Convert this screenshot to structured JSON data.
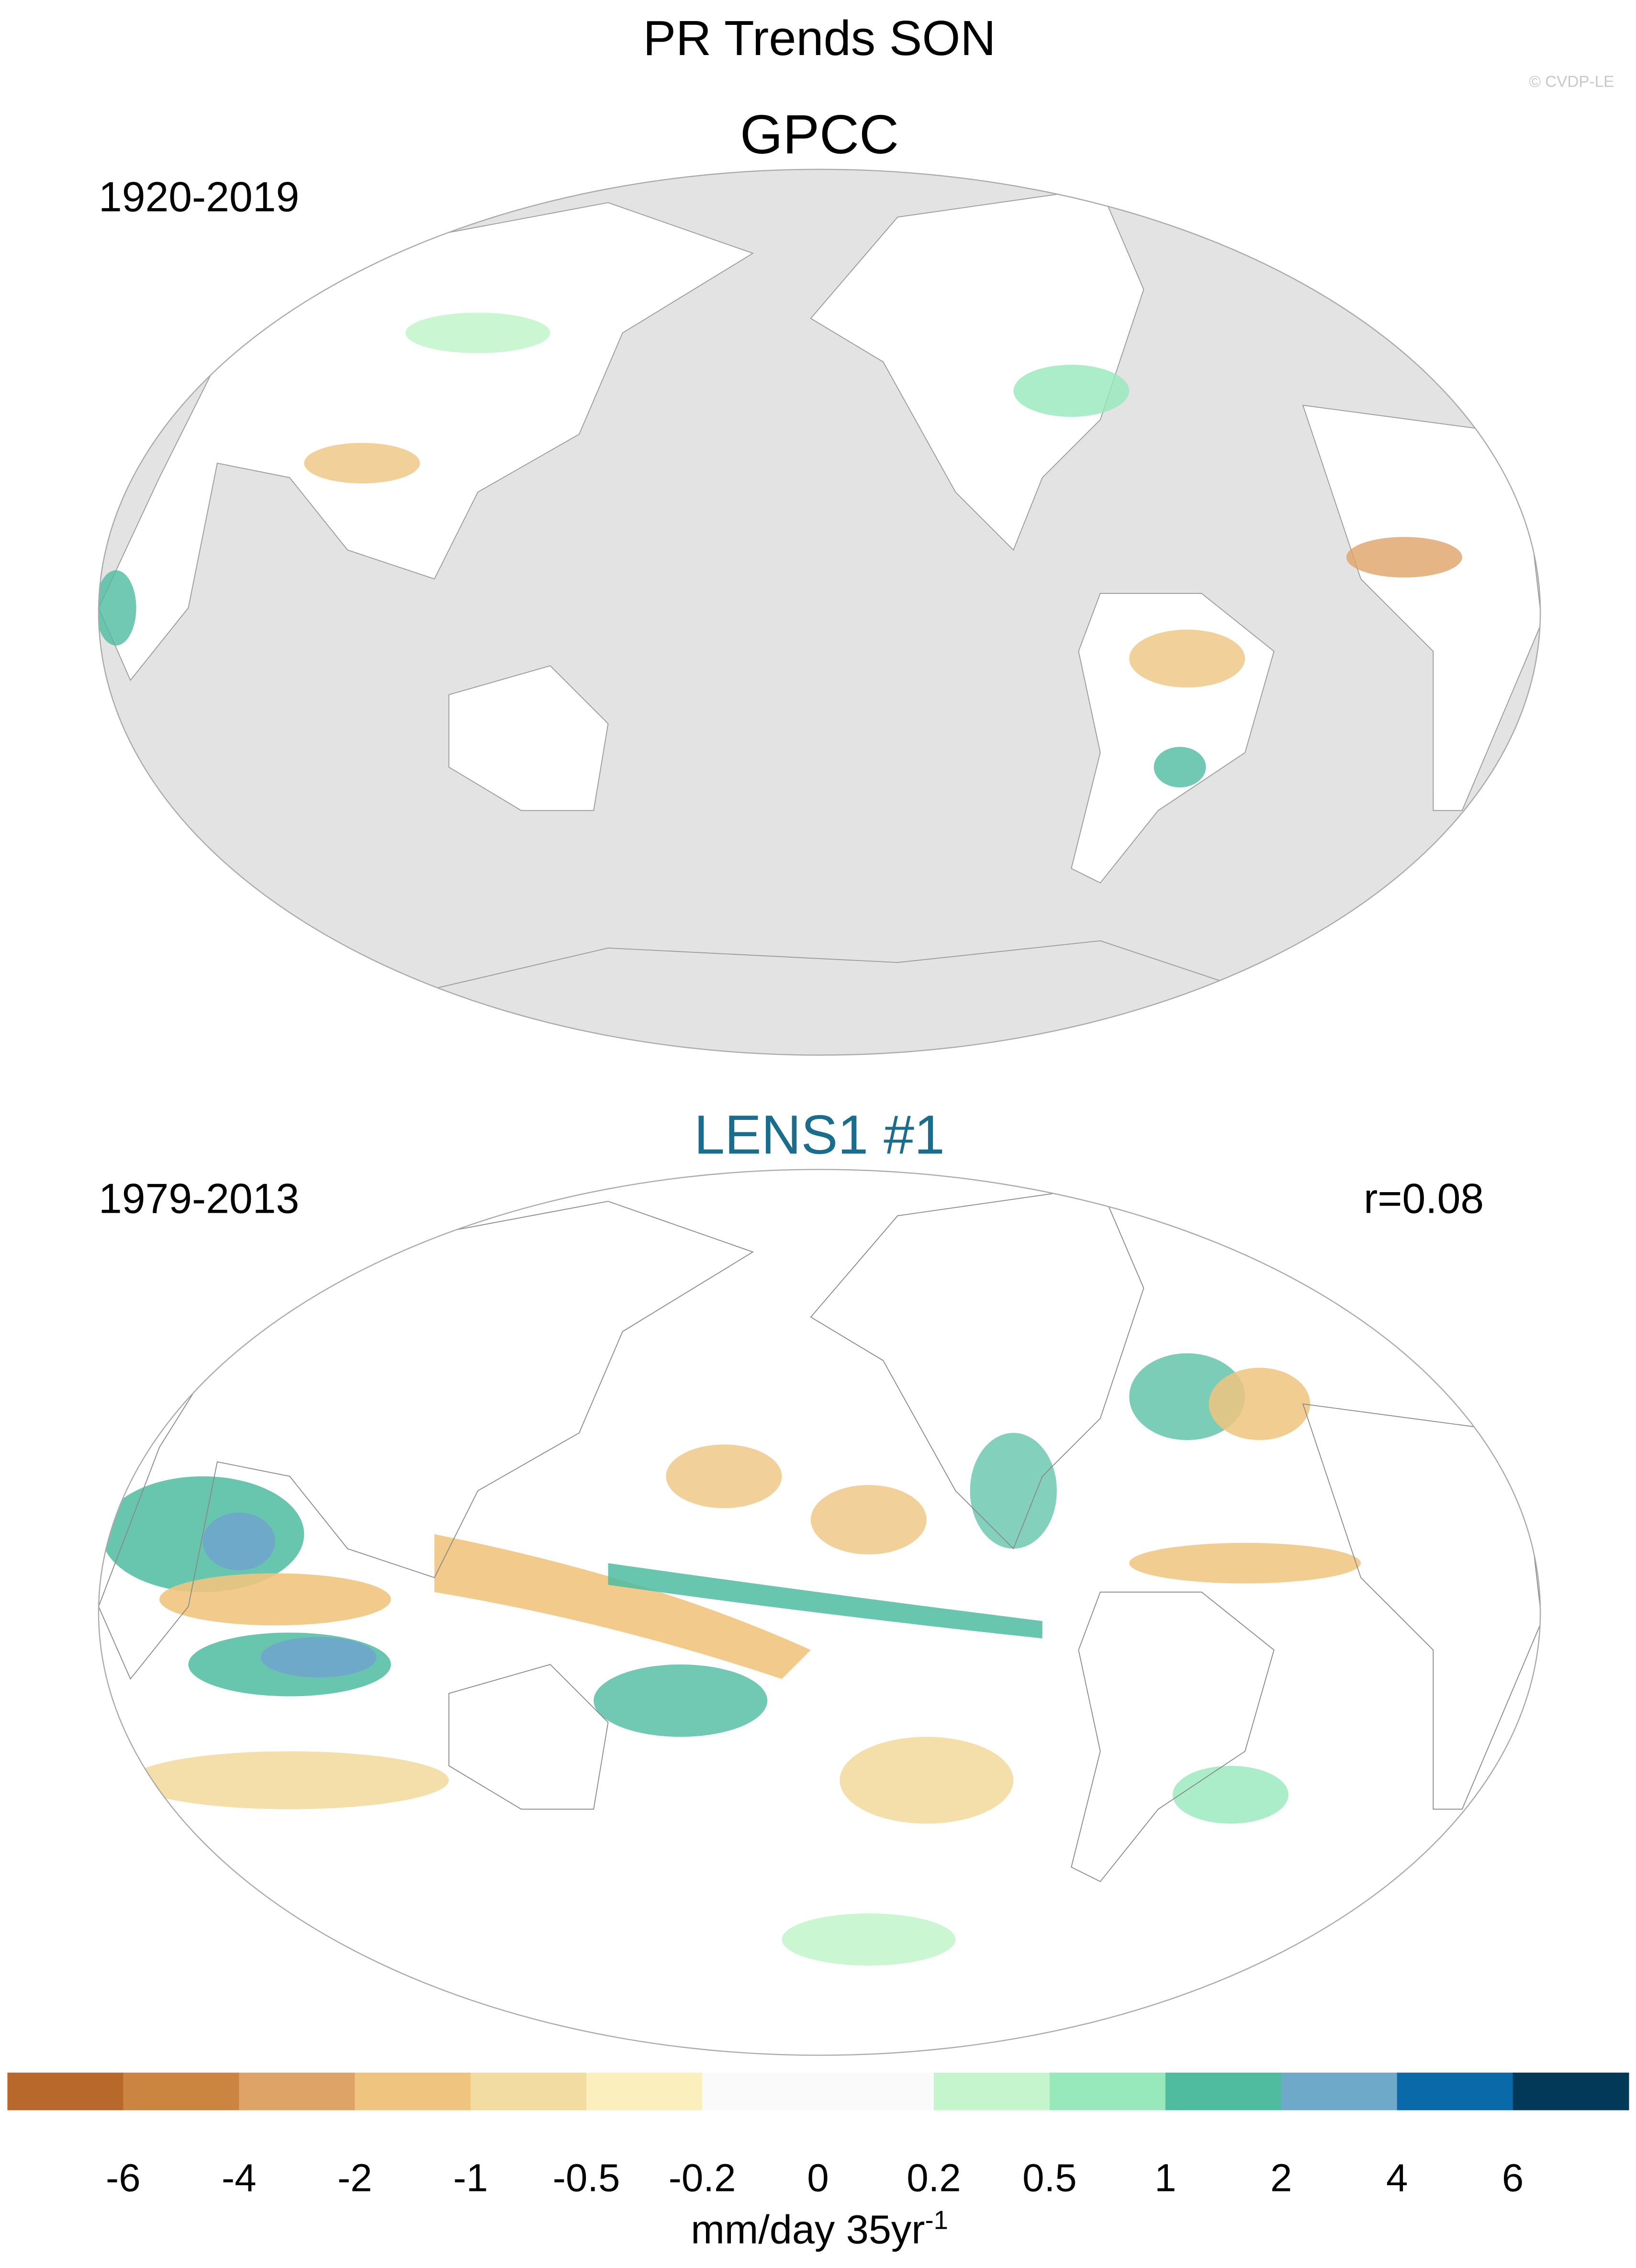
{
  "title": "PR Trends SON",
  "credit": "© CVDP-LE",
  "panels": [
    {
      "title": "GPCC",
      "period": "1920-2019"
    },
    {
      "title": "LENS1 #1",
      "title_color": "#1a6d8c",
      "period": "1979-2013",
      "stat": "r=0.08"
    }
  ],
  "colorbar": {
    "levels": [
      -6,
      -4,
      -2,
      -1,
      -0.5,
      -0.2,
      0,
      0.2,
      0.5,
      1,
      2,
      4,
      6
    ],
    "colors": [
      "#b8682a",
      "#cc8540",
      "#dea366",
      "#efc47f",
      "#f3dca2",
      "#fbf0bd",
      "#fafafa",
      "#fafafa",
      "#c5f5cd",
      "#97e8bb",
      "#4fbca0",
      "#6ea9c9",
      "#0a6aa9",
      "#023858"
    ],
    "unit": "mm/day 35yr",
    "unit_exponent": "-1"
  }
}
